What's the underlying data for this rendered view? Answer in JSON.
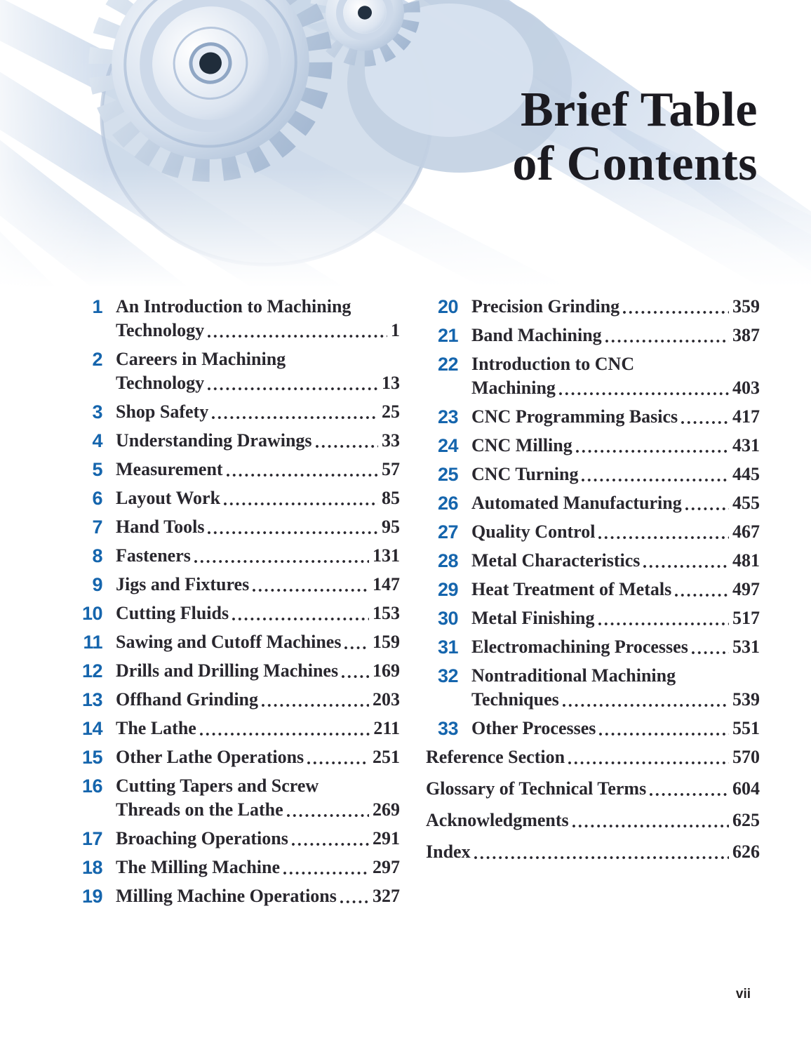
{
  "header": {
    "title_line1": "Brief Table",
    "title_line2": "of Contents",
    "art": "gears-illustration"
  },
  "colors": {
    "chapter_number_blue": "#1565ad",
    "body_text": "#29272e",
    "title_text": "#1c1b21",
    "art_streak_blue": "#c7d7e9",
    "art_gear_shadow": "#9db3cf"
  },
  "toc": {
    "left": [
      {
        "num": "1",
        "lines": [
          "An Introduction to Machining",
          "Technology"
        ],
        "page": "1"
      },
      {
        "num": "2",
        "lines": [
          "Careers in Machining",
          "Technology"
        ],
        "page": "13"
      },
      {
        "num": "3",
        "lines": [
          "Shop Safety"
        ],
        "page": "25"
      },
      {
        "num": "4",
        "lines": [
          "Understanding Drawings"
        ],
        "page": "33"
      },
      {
        "num": "5",
        "lines": [
          "Measurement"
        ],
        "page": "57"
      },
      {
        "num": "6",
        "lines": [
          "Layout Work"
        ],
        "page": "85"
      },
      {
        "num": "7",
        "lines": [
          "Hand Tools"
        ],
        "page": "95"
      },
      {
        "num": "8",
        "lines": [
          "Fasteners"
        ],
        "page": "131"
      },
      {
        "num": "9",
        "lines": [
          "Jigs and Fixtures"
        ],
        "page": "147"
      },
      {
        "num": "10",
        "lines": [
          "Cutting Fluids"
        ],
        "page": "153"
      },
      {
        "num": "11",
        "lines": [
          "Sawing and Cutoff Machines"
        ],
        "page": "159"
      },
      {
        "num": "12",
        "lines": [
          "Drills and Drilling Machines"
        ],
        "page": "169"
      },
      {
        "num": "13",
        "lines": [
          "Offhand Grinding"
        ],
        "page": "203"
      },
      {
        "num": "14",
        "lines": [
          "The Lathe"
        ],
        "page": "211"
      },
      {
        "num": "15",
        "lines": [
          "Other Lathe Operations"
        ],
        "page": "251"
      },
      {
        "num": "16",
        "lines": [
          "Cutting Tapers and Screw",
          "Threads on the Lathe"
        ],
        "page": "269"
      },
      {
        "num": "17",
        "lines": [
          "Broaching Operations"
        ],
        "page": "291"
      },
      {
        "num": "18",
        "lines": [
          "The Milling Machine"
        ],
        "page": "297"
      },
      {
        "num": "19",
        "lines": [
          "Milling Machine Operations"
        ],
        "page": "327"
      }
    ],
    "right": [
      {
        "num": "20",
        "lines": [
          "Precision Grinding"
        ],
        "page": "359"
      },
      {
        "num": "21",
        "lines": [
          "Band Machining"
        ],
        "page": "387"
      },
      {
        "num": "22",
        "lines": [
          "Introduction to CNC",
          "Machining"
        ],
        "page": "403"
      },
      {
        "num": "23",
        "lines": [
          "CNC Programming Basics"
        ],
        "page": "417"
      },
      {
        "num": "24",
        "lines": [
          "CNC Milling"
        ],
        "page": "431"
      },
      {
        "num": "25",
        "lines": [
          "CNC Turning"
        ],
        "page": "445"
      },
      {
        "num": "26",
        "lines": [
          "Automated Manufacturing"
        ],
        "page": "455"
      },
      {
        "num": "27",
        "lines": [
          "Quality Control"
        ],
        "page": "467"
      },
      {
        "num": "28",
        "lines": [
          "Metal Characteristics"
        ],
        "page": "481"
      },
      {
        "num": "29",
        "lines": [
          "Heat Treatment of Metals"
        ],
        "page": "497"
      },
      {
        "num": "30",
        "lines": [
          "Metal Finishing"
        ],
        "page": "517"
      },
      {
        "num": "31",
        "lines": [
          "Electromachining Processes"
        ],
        "page": "531"
      },
      {
        "num": "32",
        "lines": [
          "Nontraditional Machining",
          "Techniques"
        ],
        "page": "539"
      },
      {
        "num": "33",
        "lines": [
          "Other Processes"
        ],
        "page": "551"
      }
    ],
    "back_matter": [
      {
        "lines": [
          "Reference Section"
        ],
        "page": "570"
      },
      {
        "lines": [
          "Glossary of Technical Terms"
        ],
        "page": "604"
      },
      {
        "lines": [
          "Acknowledgments"
        ],
        "page": "625"
      },
      {
        "lines": [
          "Index"
        ],
        "page": "626"
      }
    ]
  },
  "footer": {
    "folio": "vii"
  }
}
